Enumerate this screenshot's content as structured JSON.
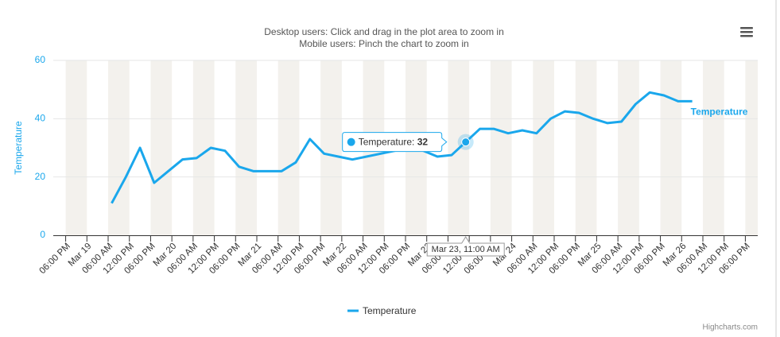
{
  "chart_data": {
    "type": "line",
    "title": "Desktop users: Click and drag in the plot area to zoom in",
    "subtitle": "Mobile users: Pinch the chart to zoom in",
    "y_label": "Temperature",
    "x": [
      "Mar 19, 07:00 AM",
      "Mar 19, 11:00 AM",
      "Mar 19, 03:00 PM",
      "Mar 19, 07:00 PM",
      "Mar 19, 11:00 PM",
      "Mar 20, 03:00 AM",
      "Mar 20, 07:00 AM",
      "Mar 20, 11:00 AM",
      "Mar 20, 03:00 PM",
      "Mar 20, 07:00 PM",
      "Mar 20, 11:00 PM",
      "Mar 21, 03:00 AM",
      "Mar 21, 07:00 AM",
      "Mar 21, 11:00 AM",
      "Mar 21, 03:00 PM",
      "Mar 21, 07:00 PM",
      "Mar 21, 11:00 PM",
      "Mar 22, 03:00 AM",
      "Mar 22, 07:00 AM",
      "Mar 22, 11:00 AM",
      "Mar 22, 03:00 PM",
      "Mar 22, 07:00 PM",
      "Mar 22, 11:00 PM",
      "Mar 23, 03:00 AM",
      "Mar 23, 07:00 AM",
      "Mar 23, 11:00 AM",
      "Mar 23, 03:00 PM",
      "Mar 23, 07:00 PM",
      "Mar 23, 11:00 PM",
      "Mar 24, 03:00 AM",
      "Mar 24, 07:00 AM",
      "Mar 24, 11:00 AM",
      "Mar 24, 03:00 PM",
      "Mar 24, 07:00 PM",
      "Mar 24, 11:00 PM",
      "Mar 25, 03:00 AM",
      "Mar 25, 07:00 AM",
      "Mar 25, 11:00 AM",
      "Mar 25, 03:00 PM",
      "Mar 25, 07:00 PM",
      "Mar 25, 11:00 PM",
      "Mar 26, 03:00 AM"
    ],
    "series": [
      {
        "name": "Temperature",
        "color": "#1aa7ec",
        "values": [
          11,
          20,
          30,
          18,
          22,
          26,
          26.5,
          30,
          29,
          23.5,
          22,
          22,
          22,
          25,
          33,
          28,
          27,
          26,
          27,
          28,
          29,
          30,
          29,
          27,
          27.5,
          32,
          36.5,
          36.5,
          35,
          36,
          35,
          40,
          42.5,
          42,
          40,
          38.5,
          39,
          45,
          49,
          48,
          46,
          46
        ]
      }
    ],
    "xlim": [
      "Mar 18, 02:30 PM",
      "Mar 26, 09:30 PM"
    ],
    "xticks": [
      {
        "value": "Mar 18, 06:00 PM",
        "label": "06:00 PM"
      },
      {
        "value": "Mar 19, 12:00 AM",
        "label": "Mar 19"
      },
      {
        "value": "Mar 19, 06:00 AM",
        "label": "06:00 AM"
      },
      {
        "value": "Mar 19, 12:00 PM",
        "label": "12:00 PM"
      },
      {
        "value": "Mar 19, 06:00 PM",
        "label": "06:00 PM"
      },
      {
        "value": "Mar 20, 12:00 AM",
        "label": "Mar 20"
      },
      {
        "value": "Mar 20, 06:00 AM",
        "label": "06:00 AM"
      },
      {
        "value": "Mar 20, 12:00 PM",
        "label": "12:00 PM"
      },
      {
        "value": "Mar 20, 06:00 PM",
        "label": "06:00 PM"
      },
      {
        "value": "Mar 21, 12:00 AM",
        "label": "Mar 21"
      },
      {
        "value": "Mar 21, 06:00 AM",
        "label": "06:00 AM"
      },
      {
        "value": "Mar 21, 12:00 PM",
        "label": "12:00 PM"
      },
      {
        "value": "Mar 21, 06:00 PM",
        "label": "06:00 PM"
      },
      {
        "value": "Mar 22, 12:00 AM",
        "label": "Mar 22"
      },
      {
        "value": "Mar 22, 06:00 AM",
        "label": "06:00 AM"
      },
      {
        "value": "Mar 22, 12:00 PM",
        "label": "12:00 PM"
      },
      {
        "value": "Mar 22, 06:00 PM",
        "label": "06:00 PM"
      },
      {
        "value": "Mar 23, 12:00 AM",
        "label": "Mar 23"
      },
      {
        "value": "Mar 23, 06:00 AM",
        "label": "06:00 AM"
      },
      {
        "value": "Mar 23, 12:00 PM",
        "label": "12:00 PM"
      },
      {
        "value": "Mar 23, 06:00 PM",
        "label": "06:00 PM"
      },
      {
        "value": "Mar 24, 12:00 AM",
        "label": "Mar 24"
      },
      {
        "value": "Mar 24, 06:00 AM",
        "label": "06:00 AM"
      },
      {
        "value": "Mar 24, 12:00 PM",
        "label": "12:00 PM"
      },
      {
        "value": "Mar 24, 06:00 PM",
        "label": "06:00 PM"
      },
      {
        "value": "Mar 25, 12:00 AM",
        "label": "Mar 25"
      },
      {
        "value": "Mar 25, 06:00 AM",
        "label": "06:00 AM"
      },
      {
        "value": "Mar 25, 12:00 PM",
        "label": "12:00 PM"
      },
      {
        "value": "Mar 25, 06:00 PM",
        "label": "06:00 PM"
      },
      {
        "value": "Mar 26, 12:00 AM",
        "label": "Mar 26"
      },
      {
        "value": "Mar 26, 06:00 AM",
        "label": "06:00 AM"
      },
      {
        "value": "Mar 26, 12:00 PM",
        "label": "12:00 PM"
      },
      {
        "value": "Mar 26, 06:00 PM",
        "label": "06:00 PM"
      }
    ],
    "ylim": [
      0,
      60
    ],
    "yticks": [
      0,
      20,
      40,
      60
    ],
    "grid": true,
    "band_color": "#f3f1ed",
    "legend": "bottom",
    "tooltip": {
      "point": 25,
      "label": "Temperature:"
    },
    "credits": "Highcharts.com"
  }
}
